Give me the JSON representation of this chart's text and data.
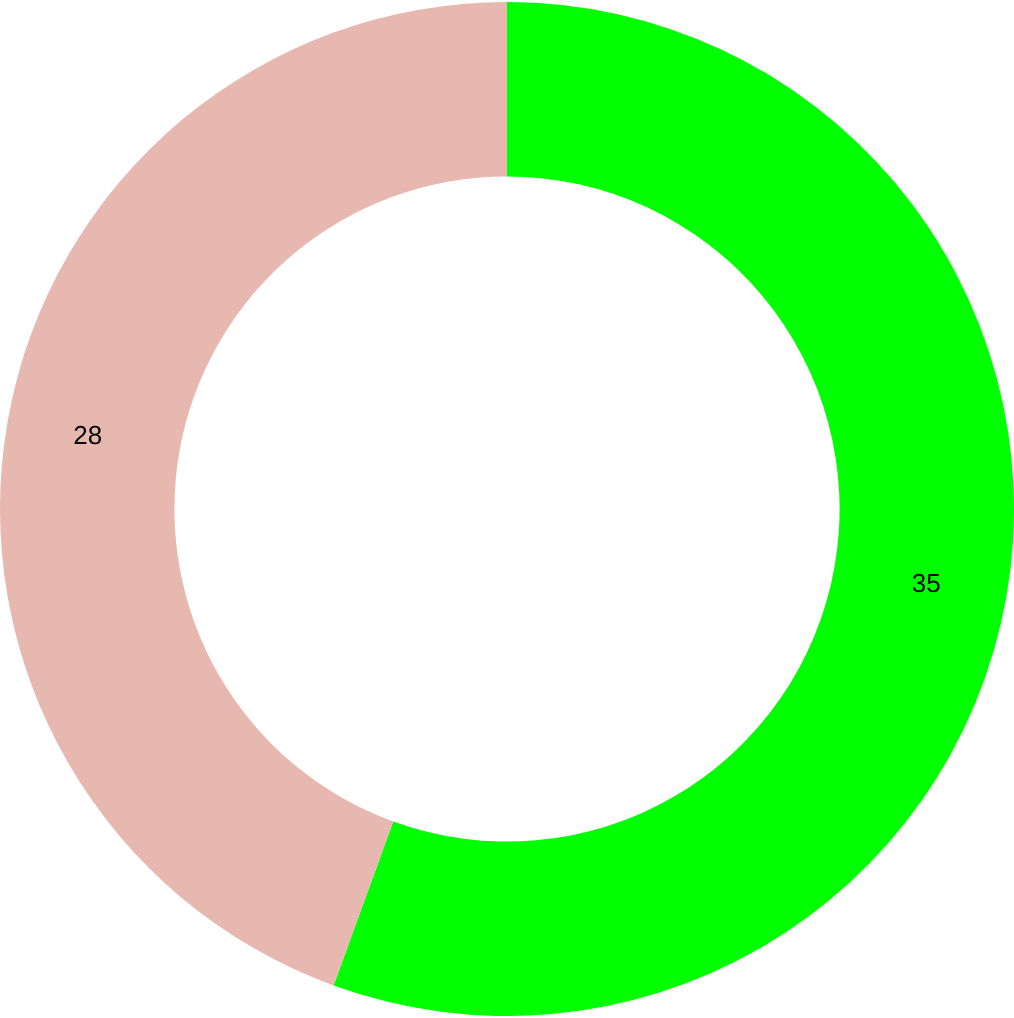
{
  "chart_data": {
    "type": "donut",
    "categories": [
      null,
      null
    ],
    "values": [
      35,
      28
    ],
    "colors": [
      "#00ff00",
      "#e6b8af"
    ],
    "data_labels": true
  }
}
